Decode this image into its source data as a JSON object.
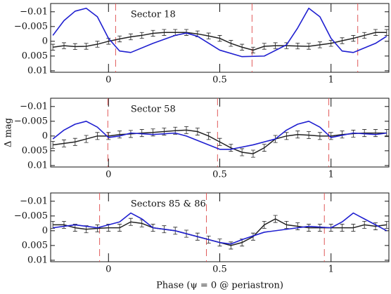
{
  "chart_data": [
    {
      "type": "line",
      "title": "Sector 18",
      "xlim": [
        -0.26,
        1.26
      ],
      "ylim": [
        0.0105,
        -0.0128
      ],
      "xticks": [
        0,
        0.5,
        1
      ],
      "yticks": [
        {
          "value": -0.01,
          "label": "−0.01"
        },
        {
          "value": -0.005,
          "label": "−0.005"
        },
        0,
        0.005,
        0.01
      ],
      "vlines": {
        "color": "#e05a5a",
        "x": [
          0.032,
          0.645,
          1.12
        ]
      },
      "series": [
        {
          "color": "#222222",
          "x": [
            -0.25,
            -0.2,
            -0.15,
            -0.1,
            -0.05,
            0,
            0.05,
            0.1,
            0.15,
            0.2,
            0.25,
            0.3,
            0.35,
            0.4,
            0.45,
            0.5,
            0.55,
            0.6,
            0.65,
            0.7,
            0.75,
            0.8,
            0.85,
            0.9,
            0.95,
            1,
            1.05,
            1.1,
            1.15,
            1.2,
            1.25
          ],
          "values": [
            0.002,
            0.0015,
            0.0018,
            0.0017,
            0.001,
            0,
            -0.0008,
            -0.0015,
            -0.002,
            -0.0027,
            -0.003,
            -0.003,
            -0.003,
            -0.0025,
            -0.0018,
            -0.001,
            0.0007,
            0.002,
            0.003,
            0.0017,
            0.0015,
            0.0015,
            0.0016,
            0.0017,
            0.0012,
            0.0007,
            -0.0002,
            -0.001,
            -0.002,
            -0.003,
            -0.003
          ],
          "errors": [
            0.001,
            0.001,
            0.001,
            0.001,
            0.001,
            0.001,
            0.001,
            0.001,
            0.001,
            0.001,
            0.001,
            0.001,
            0.001,
            0.001,
            0.001,
            0.001,
            0.001,
            0.001,
            0.001,
            0.001,
            0.001,
            0.001,
            0.001,
            0.001,
            0.001,
            0.001,
            0.001,
            0.001,
            0.001,
            0.001,
            0.001
          ]
        },
        {
          "color": "#1f1fd0",
          "x": [
            -0.25,
            -0.2,
            -0.15,
            -0.1,
            -0.05,
            0,
            0.05,
            0.1,
            0.2,
            0.3,
            0.35,
            0.4,
            0.5,
            0.6,
            0.7,
            0.8,
            0.85,
            0.9,
            0.95,
            1,
            1.05,
            1.1,
            1.2,
            1.25
          ],
          "values": [
            -0.002,
            -0.007,
            -0.0102,
            -0.0112,
            -0.0083,
            -0.001,
            0.0033,
            0.0038,
            0.0007,
            -0.002,
            -0.0028,
            -0.0017,
            0.003,
            0.0052,
            0.005,
            0.0012,
            -0.0045,
            -0.0112,
            -0.0083,
            -0.001,
            0.0033,
            0.0038,
            0.0007,
            -0.0017
          ]
        }
      ]
    },
    {
      "type": "line",
      "title": "Sector 58",
      "y_label": "Δ mag",
      "xlim": [
        -0.26,
        1.26
      ],
      "ylim": [
        0.0105,
        -0.0128
      ],
      "xticks": [
        0,
        0.5,
        1
      ],
      "yticks": [
        {
          "value": -0.01,
          "label": "−0.01"
        },
        {
          "value": -0.005,
          "label": "−0.005"
        },
        0,
        0.005,
        0.01
      ],
      "vlines": {
        "color": "#e05a5a",
        "x": [
          -0.003,
          0.49,
          0.99
        ]
      },
      "series": [
        {
          "color": "#222222",
          "x": [
            -0.25,
            -0.2,
            -0.15,
            -0.1,
            -0.05,
            0,
            0.05,
            0.1,
            0.15,
            0.2,
            0.25,
            0.3,
            0.35,
            0.4,
            0.45,
            0.5,
            0.55,
            0.6,
            0.65,
            0.7,
            0.75,
            0.8,
            0.85,
            0.9,
            0.95,
            1,
            1.05,
            1.1,
            1.15,
            1.2,
            1.25
          ],
          "values": [
            0.003,
            0.0025,
            0.002,
            0.001,
            0,
            0,
            -0.0005,
            -0.0007,
            -0.001,
            -0.0012,
            -0.0015,
            -0.0018,
            -0.002,
            -0.0015,
            0,
            0.002,
            0.004,
            0.0055,
            0.006,
            0.004,
            0.001,
            0,
            -0.0005,
            -0.0003,
            0,
            0,
            -0.0005,
            -0.0008,
            -0.001,
            -0.001,
            -0.001
          ],
          "errors": [
            0.0012,
            0.0012,
            0.0012,
            0.0012,
            0.0012,
            0.0012,
            0.0012,
            0.0012,
            0.0012,
            0.0012,
            0.0012,
            0.0012,
            0.0012,
            0.0012,
            0.0012,
            0.0012,
            0.0012,
            0.0012,
            0.0012,
            0.0012,
            0.0012,
            0.0012,
            0.0012,
            0.0012,
            0.0012,
            0.0012,
            0.0012,
            0.0012,
            0.0012,
            0.0012,
            0.0012
          ]
        },
        {
          "color": "#1f1fd0",
          "x": [
            -0.25,
            -0.2,
            -0.15,
            -0.1,
            -0.05,
            0,
            0.05,
            0.1,
            0.2,
            0.3,
            0.35,
            0.45,
            0.5,
            0.55,
            0.65,
            0.75,
            0.8,
            0.85,
            0.9,
            0.95,
            1,
            1.1,
            1.2,
            1.25
          ],
          "values": [
            0.001,
            -0.002,
            -0.004,
            -0.005,
            -0.003,
            0.0005,
            0,
            -0.001,
            -0.0005,
            -0.001,
            0,
            0.003,
            0.0045,
            0.0045,
            0.003,
            0.001,
            -0.002,
            -0.004,
            -0.005,
            -0.003,
            0.0005,
            -0.001,
            -0.0005,
            -0.001
          ]
        }
      ]
    },
    {
      "type": "line",
      "title": "Sectors 85 & 86",
      "x_label": "Phase (ψ = 0 @ periastron)",
      "xlim": [
        -0.26,
        1.26
      ],
      "ylim": [
        0.0105,
        -0.0128
      ],
      "xticks": [
        0,
        0.5,
        1
      ],
      "yticks": [
        {
          "value": -0.01,
          "label": "−0.01"
        },
        {
          "value": -0.005,
          "label": "−0.005"
        },
        0,
        0.005,
        0.01
      ],
      "vlines": {
        "color": "#e05a5a",
        "x": [
          -0.04,
          0.44,
          0.97
        ]
      },
      "series": [
        {
          "color": "#222222",
          "x": [
            -0.25,
            -0.2,
            -0.15,
            -0.1,
            -0.05,
            0,
            0.05,
            0.1,
            0.15,
            0.2,
            0.25,
            0.3,
            0.35,
            0.4,
            0.45,
            0.5,
            0.55,
            0.6,
            0.65,
            0.7,
            0.75,
            0.8,
            0.85,
            0.9,
            0.95,
            1,
            1.05,
            1.1,
            1.15,
            1.2,
            1.25
          ],
          "values": [
            -0.002,
            -0.002,
            -0.001,
            -0.0005,
            -0.0008,
            -0.001,
            -0.001,
            -0.003,
            -0.0025,
            -0.001,
            -0.0005,
            0,
            0.001,
            0.002,
            0.003,
            0.004,
            0.005,
            0.004,
            0.002,
            -0.002,
            -0.004,
            -0.002,
            -0.0015,
            -0.001,
            -0.001,
            -0.001,
            -0.001,
            -0.001,
            -0.002,
            -0.0015,
            -0.002
          ],
          "errors": [
            0.0012,
            0.0012,
            0.0012,
            0.0012,
            0.0012,
            0.0012,
            0.0012,
            0.0012,
            0.0012,
            0.0012,
            0.0012,
            0.0012,
            0.0012,
            0.0012,
            0.0012,
            0.0012,
            0.0012,
            0.0012,
            0.0012,
            0.0012,
            0.0012,
            0.0012,
            0.0012,
            0.0012,
            0.0012,
            0.0012,
            0.0012,
            0.0012,
            0.0012,
            0.0012,
            0.0012
          ]
        },
        {
          "color": "#1f1fd0",
          "x": [
            -0.25,
            -0.15,
            -0.05,
            0.05,
            0.1,
            0.15,
            0.2,
            0.3,
            0.4,
            0.5,
            0.55,
            0.6,
            0.7,
            0.8,
            0.9,
            1,
            1.05,
            1.1,
            1.15,
            1.25
          ],
          "values": [
            -0.001,
            -0.002,
            -0.001,
            -0.003,
            -0.006,
            -0.004,
            -0.001,
            0,
            0.002,
            0.004,
            0.0045,
            0.003,
            0.0005,
            -0.0005,
            -0.0015,
            -0.001,
            -0.003,
            -0.006,
            -0.004,
            0
          ]
        }
      ]
    }
  ]
}
